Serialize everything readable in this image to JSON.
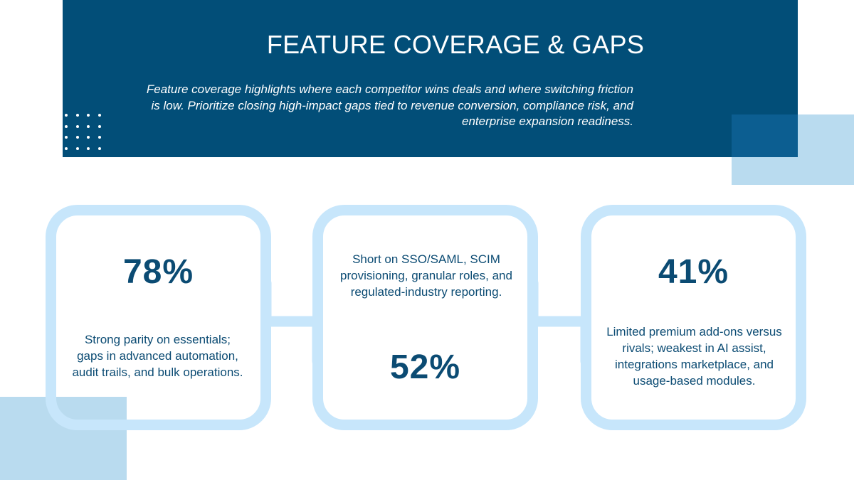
{
  "header": {
    "title": "FEATURE COVERAGE & GAPS",
    "subtitle": "Feature coverage highlights where each competitor wins deals and where switching friction is low. Prioritize closing high-impact gaps tied to revenue conversion, compliance risk, and enterprise expansion readiness."
  },
  "cards": [
    {
      "stat": "78%",
      "description": "Strong parity on essentials; gaps in advanced automation, audit trails, and bulk operations."
    },
    {
      "stat": "52%",
      "description": "Short on SSO/SAML, SCIM provisioning, granular roles, and regulated-industry reporting."
    },
    {
      "stat": "41%",
      "description": "Limited premium add-ons versus rivals; weakest in AI assist, integrations marketplace, and usage-based modules."
    }
  ],
  "colors": {
    "header_bg": "#024e78",
    "accent_light": "#b9dbef",
    "card_border": "#c7e6fb",
    "text_primary": "#0b4b73"
  }
}
